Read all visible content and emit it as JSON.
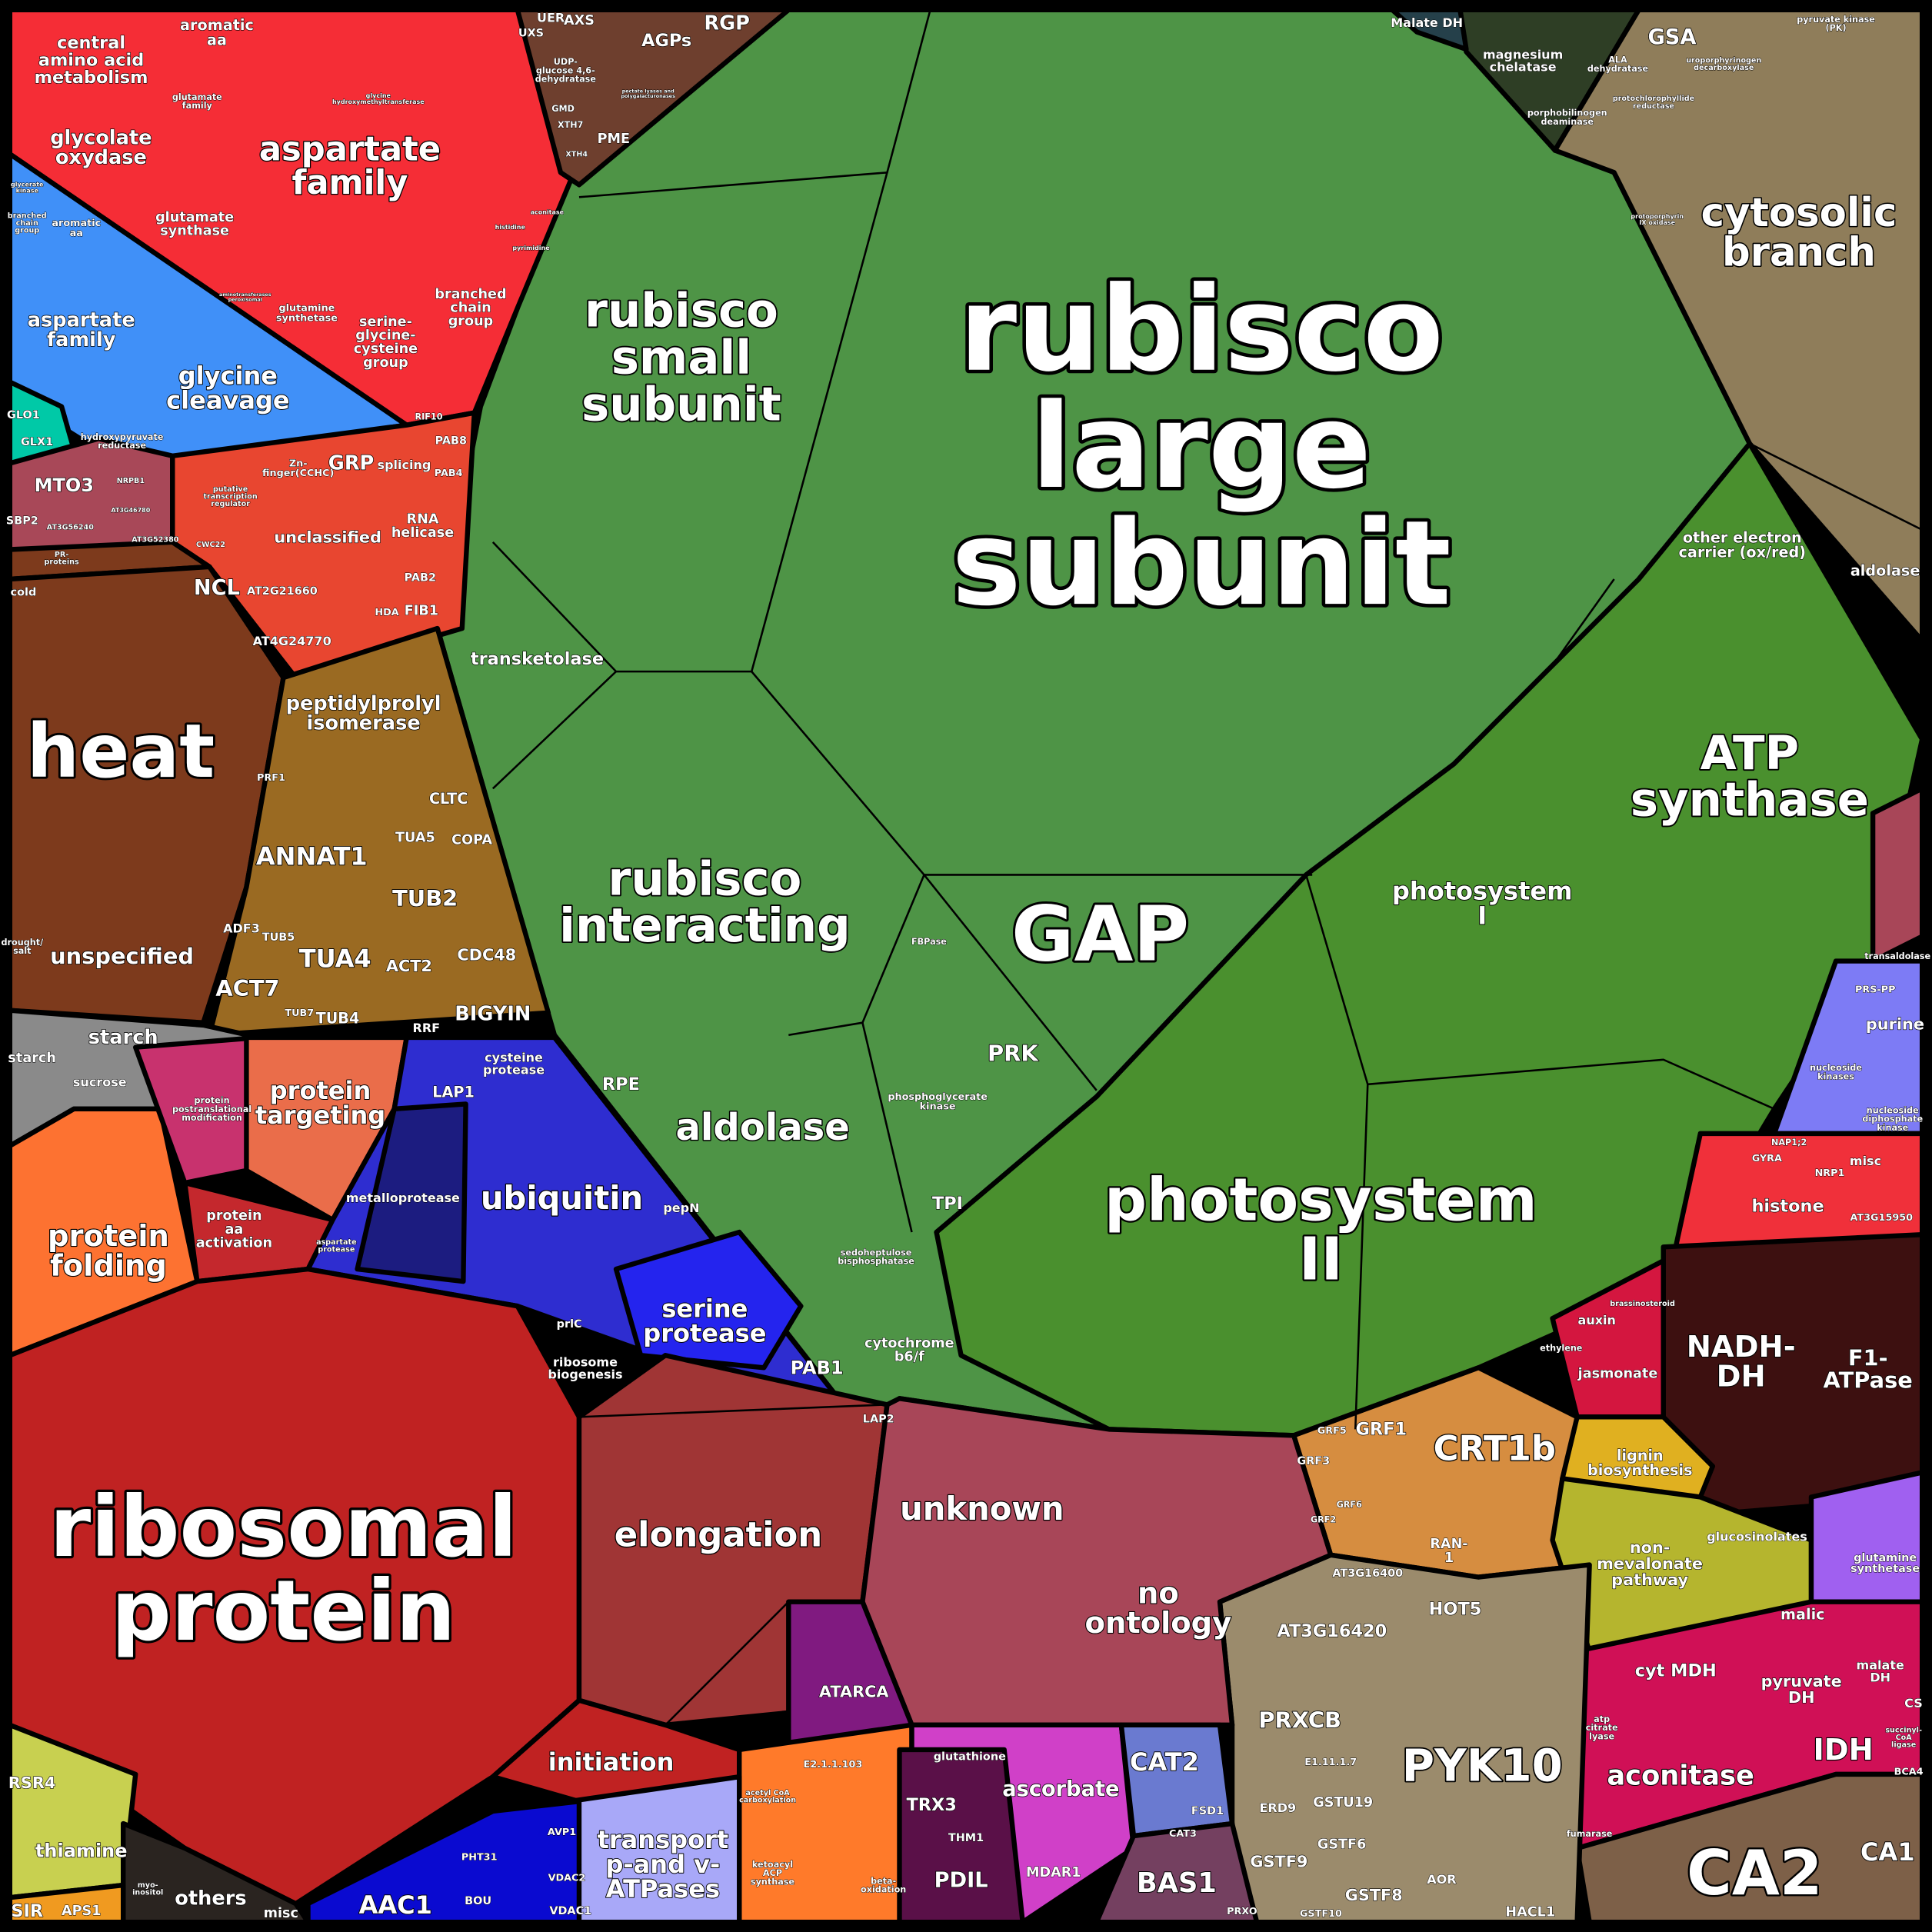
{
  "colors": {
    "frame": "#000000",
    "amino_acid": "#f52d36",
    "photorespiration": "#4090f8",
    "glyoxalase": "#00c9a7",
    "mto3": "#a84858",
    "rna": "#e84630",
    "stress": "#7d3a1c",
    "cell": "#9a6a22",
    "starch": "#8a8a8a",
    "folding": "#fd7231",
    "ptm": "#c8326e",
    "targeting": "#ea6d4a",
    "aa_activation": "#c4282d",
    "degradation": "#2e2dd0",
    "metalloprotease": "#1c1c80",
    "serine_protease": "#2424ee",
    "ribosomal": "#c02222",
    "elongation": "#a03535",
    "calvin": "#4e9446",
    "light_reactions": "#4a902e",
    "tetrapyrrole": "#2e3e25",
    "malate_dh": "#25404a",
    "glycolysis": "#8f7d5a",
    "cell_wall": "#6e3f2e",
    "nucleotides": "#7d7bf5",
    "chromatin": "#f0303a",
    "mito_etc": "#3d1010",
    "hormone": "#d4163f",
    "redox_orange": "#d68d40",
    "secondary": "#e0b020",
    "isoprenoid": "#b5b52e",
    "n_metabolism": "#a060f0",
    "tca": "#d01056",
    "carbonic_anhydrase": "#7d6048",
    "misc": "#9b8b6c",
    "unknown": "#a84658",
    "atarca": "#801a80",
    "lipid": "#ff7a2a",
    "transport": "#a8a8f8",
    "carrier": "#0a0ad0",
    "ascorbate": "#d040c8",
    "thioredoxin": "#5a1048",
    "catalase": "#6a7ad0",
    "peroxiredoxin": "#744060",
    "cofactor": "#c8d050",
    "others": "#2a2420",
    "sulfur": "#f09a20"
  },
  "labels": {
    "rubisco_large": [
      "rubisco",
      "large",
      "subunit"
    ],
    "rubisco_small": [
      "rubisco",
      "small",
      "subunit"
    ],
    "ribosomal": [
      "ribosomal",
      "protein"
    ],
    "heat": [
      "heat"
    ],
    "ps2": [
      "photosystem",
      "II"
    ],
    "atp_synthase": [
      "ATP",
      "synthase"
    ],
    "gap": [
      "GAP"
    ],
    "pyk10": [
      "PYK10"
    ],
    "ca2": [
      "CA2"
    ],
    "cytosolic": [
      "cytosolic",
      "branch"
    ],
    "asp_red": [
      "aspartate",
      "family"
    ],
    "rubisco_int": [
      "rubisco",
      "interacting"
    ],
    "aldolase": [
      "aldolase"
    ],
    "ps1": [
      "photosystem",
      "I"
    ],
    "ubiquitin": [
      "ubiquitin"
    ],
    "elongation": [
      "elongation"
    ],
    "unknown": [
      "unknown"
    ],
    "no_ontology": [
      "no",
      "ontology"
    ],
    "crt1b": [
      "CRT1b"
    ],
    "nadh": [
      "NADH-",
      "DH"
    ],
    "f1": [
      "F1-",
      "ATPase"
    ],
    "aconitase": [
      "aconitase"
    ],
    "idh": [
      "IDH"
    ],
    "annat1": [
      "ANNAT1"
    ],
    "tub2": [
      "TUB2"
    ],
    "tua4": [
      "TUA4"
    ],
    "act7": [
      "ACT7"
    ],
    "bigyin": [
      "BIGYIN"
    ],
    "cdc48": [
      "CDC48"
    ],
    "act2": [
      "ACT2"
    ],
    "cltc": [
      "CLTC"
    ],
    "copa": [
      "COPA"
    ],
    "tua5": [
      "TUA5"
    ],
    "tub5": [
      "TUB5"
    ],
    "adf3": [
      "ADF3"
    ],
    "tub4": [
      "TUB4"
    ],
    "tub7": [
      "TUB7"
    ],
    "prf1": [
      "PRF1"
    ],
    "rrf": [
      "RRF"
    ],
    "ppi": [
      "peptidylprolyl",
      "isomerase"
    ],
    "unspecified": [
      "unspecified"
    ],
    "starch_big": [
      "starch"
    ],
    "starch_small": [
      "starch"
    ],
    "sucrose": [
      "sucrose"
    ],
    "drought": [
      "drought/",
      "salt"
    ],
    "targeting": [
      "protein",
      "targeting"
    ],
    "folding": [
      "protein",
      "folding"
    ],
    "aa_act": [
      "protein",
      "aa",
      "activation"
    ],
    "ptm": [
      "protein",
      "postranslational",
      "modification"
    ],
    "metalloprotease": [
      "metalloprotease"
    ],
    "serine_protease": [
      "serine",
      "protease"
    ],
    "pab1": [
      "PAB1"
    ],
    "lap1": [
      "LAP1"
    ],
    "cysteine_protease": [
      "cysteine",
      "protease"
    ],
    "pepn": [
      "pepN"
    ],
    "prlc": [
      "prlC"
    ],
    "lap2": [
      "LAP2"
    ],
    "asp_protease": [
      "aspartate",
      "protease"
    ],
    "ribo_biogenesis": [
      "ribosome",
      "biogenesis"
    ],
    "initiation": [
      "initiation"
    ],
    "transport": [
      "transport",
      "p-and v-",
      "ATPases"
    ],
    "aac1": [
      "AAC1"
    ],
    "pht31": [
      "PHT31"
    ],
    "bou": [
      "BOU"
    ],
    "avp1": [
      "AVP1"
    ],
    "vdac2": [
      "VDAC2"
    ],
    "vdac1": [
      "VDAC1"
    ],
    "others": [
      "others"
    ],
    "misc_bl": [
      "misc"
    ],
    "thiamine": [
      "thiamine"
    ],
    "rsr4": [
      "RSR4"
    ],
    "sir": [
      "SIR"
    ],
    "aps1": [
      "APS1"
    ],
    "myo": [
      "myo-",
      "inositol"
    ],
    "atarca": [
      "ATARCA"
    ],
    "e2": [
      "E2.1.1.103"
    ],
    "acetyl": [
      "acetyl CoA",
      "carboxylation"
    ],
    "ketoacyl": [
      "ketoacyl",
      "ACP",
      "synthase"
    ],
    "betaox": [
      "beta-",
      "oxidation"
    ],
    "trx3": [
      "TRX3"
    ],
    "thm1": [
      "THM1"
    ],
    "pdil": [
      "PDIL"
    ],
    "glutathione": [
      "glutathione"
    ],
    "ascorbate": [
      "ascorbate"
    ],
    "mdar1": [
      "MDAR1"
    ],
    "cat2": [
      "CAT2"
    ],
    "fsd1": [
      "FSD1"
    ],
    "cat3": [
      "CAT3"
    ],
    "bas1": [
      "BAS1"
    ],
    "prxo": [
      "PRXO"
    ],
    "prxcb": [
      "PRXCB"
    ],
    "at3g16420": [
      "AT3G16420"
    ],
    "at3g16400": [
      "AT3G16400"
    ],
    "hot5": [
      "HOT5"
    ],
    "e1117": [
      "E1.11.1.7"
    ],
    "erd9": [
      "ERD9"
    ],
    "gstu19": [
      "GSTU19"
    ],
    "gstf9": [
      "GSTF9"
    ],
    "gstf6": [
      "GSTF6"
    ],
    "gstf8": [
      "GSTF8"
    ],
    "gstf10": [
      "GSTF10"
    ],
    "aor": [
      "AOR"
    ],
    "hacl1": [
      "HACL1"
    ],
    "grf1": [
      "GRF1"
    ],
    "grf3": [
      "GRF3"
    ],
    "grf5": [
      "GRF5"
    ],
    "ran1": [
      "RAN-",
      "1"
    ],
    "grf2": [
      "GRF2"
    ],
    "grf6": [
      "GRF6"
    ],
    "lignin": [
      "lignin",
      "biosynthesis"
    ],
    "nonmev": [
      "non-",
      "mevalonate",
      "pathway"
    ],
    "glucosinolates": [
      "glucosinolates"
    ],
    "jasmonate": [
      "jasmonate"
    ],
    "auxin": [
      "auxin"
    ],
    "ethylene": [
      "ethylene"
    ],
    "brassino": [
      "brassinosteroid"
    ],
    "gs_purple": [
      "glutamine",
      "synthetase"
    ],
    "malic": [
      "malic"
    ],
    "cytmdh": [
      "cyt MDH"
    ],
    "pdh": [
      "pyruvate",
      "DH"
    ],
    "malate_dh_r": [
      "malate",
      "DH"
    ],
    "cs": [
      "CS"
    ],
    "scl": [
      "succinyl-",
      "CoA",
      "ligase"
    ],
    "bca4": [
      "BCA4"
    ],
    "ca1": [
      "CA1"
    ],
    "fumarase": [
      "fumarase"
    ],
    "acl": [
      "atp",
      "citrate",
      "lyase"
    ],
    "histone": [
      "histone"
    ],
    "at3g15950": [
      "AT3G15950"
    ],
    "gyra": [
      "GYRA"
    ],
    "nap12": [
      "NAP1;2"
    ],
    "nrp1": [
      "NRP1"
    ],
    "misc_r": [
      "misc"
    ],
    "purine": [
      "purine"
    ],
    "nuc_kin": [
      "nucleoside",
      "kinases"
    ],
    "ndpk": [
      "nucleoside",
      "diphosphate",
      "kinase"
    ],
    "prspp": [
      "PRS-PP"
    ],
    "transaldolase": [
      "transaldolase"
    ],
    "aldolase_r": [
      "aldolase"
    ],
    "oec": [
      "other electron",
      "carrier (ox/red)"
    ],
    "prk": [
      "PRK"
    ],
    "rpe": [
      "RPE"
    ],
    "tpi": [
      "TPI"
    ],
    "fbpase": [
      "FBPase"
    ],
    "pgk": [
      "phosphoglycerate",
      "kinase"
    ],
    "sbp": [
      "sedoheptulose",
      "bisphosphatase"
    ],
    "cytb6f": [
      "cytochrome",
      "b6/f"
    ],
    "transketolase": [
      "transketolase"
    ],
    "uer": [
      "UER"
    ],
    "axs": [
      "AXS"
    ],
    "uxs": [
      "UXS"
    ],
    "agps": [
      "AGPs"
    ],
    "rgp": [
      "RGP"
    ],
    "udp": [
      "UDP-",
      "glucose 4,6-",
      "dehydratase"
    ],
    "gmd": [
      "GMD"
    ],
    "xth7": [
      "XTH7"
    ],
    "pme": [
      "PME"
    ],
    "xth4": [
      "XTH4"
    ],
    "pectate": [
      "pectate lyases and",
      "polygalacturonases"
    ],
    "malate_dh_t": [
      "Malate DH"
    ],
    "mgchel": [
      "magnesium",
      "chelatase"
    ],
    "gsa": [
      "GSA"
    ],
    "ala": [
      "ALA",
      "dehydratase"
    ],
    "pbgd": [
      "porphobilinogen",
      "deaminase"
    ],
    "pchlide": [
      "protochlorophyllide",
      "reductase"
    ],
    "urod": [
      "uroporphyrinogen",
      "decarboxylase"
    ],
    "ppox": [
      "protoporphyrin",
      "IX oxidase"
    ],
    "pk": [
      "pyruvate kinase",
      "(PK)"
    ],
    "central": [
      "central",
      "amino acid",
      "metabolism"
    ],
    "arom_red": [
      "aromatic",
      "aa"
    ],
    "glycolate": [
      "glycolate",
      "oxydase"
    ],
    "glu_family": [
      "glutamate",
      "family"
    ],
    "glu_synthase": [
      "glutamate",
      "synthase"
    ],
    "shmt": [
      "glycine",
      "hydroxymethyltransferase"
    ],
    "aminotrans": [
      "aminotransferases",
      "peroxisomal"
    ],
    "gln_synth": [
      "glutamine",
      "synthetase"
    ],
    "sgc": [
      "serine-",
      "glycine-",
      "cysteine",
      "group"
    ],
    "bcg_red": [
      "branched",
      "chain",
      "group"
    ],
    "aconitase_s": [
      "aconitase"
    ],
    "histidine": [
      "histidine"
    ],
    "pyrimidine": [
      "pyrimidine"
    ],
    "asp_blue": [
      "aspartate",
      "family"
    ],
    "gly_cleavage": [
      "glycine",
      "cleavage"
    ],
    "hpr": [
      "hydroxypyruvate",
      "reductase"
    ],
    "arom_blue": [
      "aromatic",
      "aa"
    ],
    "bcg_blue": [
      "branched",
      "chain",
      "group"
    ],
    "glyk": [
      "glycerate",
      "kinase"
    ],
    "glo1": [
      "GLO1"
    ],
    "glx1": [
      "GLX1"
    ],
    "mto3": [
      "MTO3"
    ],
    "sbp2": [
      "SBP2"
    ],
    "at3g56240": [
      "AT3G56240"
    ],
    "pr": [
      "PR-",
      "proteins"
    ],
    "cold": [
      "cold"
    ],
    "grp": [
      "GRP"
    ],
    "zn": [
      "Zn-",
      "finger(CCHC)"
    ],
    "splicing": [
      "splicing"
    ],
    "pab8": [
      "PAB8"
    ],
    "pab4": [
      "PAB4"
    ],
    "rif10": [
      "RIF10"
    ],
    "rnahel": [
      "RNA",
      "helicase"
    ],
    "unclassified": [
      "unclassified"
    ],
    "ncl": [
      "NCL"
    ],
    "at2g21660": [
      "AT2G21660"
    ],
    "at4g24770": [
      "AT4G24770"
    ],
    "pab2": [
      "PAB2"
    ],
    "hda": [
      "HDA"
    ],
    "fib1": [
      "FIB1"
    ],
    "ptr": [
      "putative",
      "transcription",
      "regulator"
    ],
    "at3g46780": [
      "AT3G46780"
    ],
    "at3g52380": [
      "AT3G52380"
    ],
    "cwc22": [
      "CWC22"
    ],
    "nrpb1": [
      "NRPB1"
    ]
  }
}
